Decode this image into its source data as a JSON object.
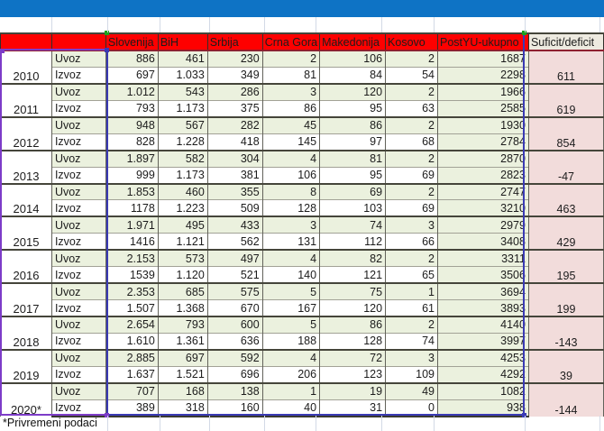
{
  "colors": {
    "titlebar_blue": "#0e73c5",
    "header_red": "#fe0000",
    "uvoz_green": "#ebf1de",
    "suficit_pink": "#f2dcdb",
    "suficit_header_bg": "#edeae0",
    "selection_blue": "#3a3ab4",
    "selection_purple": "#7d3cc8",
    "selection_green": "#1ba11b"
  },
  "table": {
    "col_headers": [
      "",
      "",
      "Slovenija",
      "BiH",
      "Srbija",
      "Crna Gora",
      "Makedonija",
      "Kosovo",
      "PostYU-ukupno",
      "Suficit/deficit"
    ],
    "row_label_uvoz": "Uvoz",
    "row_label_izvoz": "Izvoz",
    "years": [
      {
        "year": "2010",
        "uvoz": [
          "886",
          "461",
          "230",
          "2",
          "106",
          "2",
          "1687"
        ],
        "izvoz": [
          "697",
          "1.033",
          "349",
          "81",
          "84",
          "54",
          "2298"
        ],
        "suficit": "611"
      },
      {
        "year": "2011",
        "uvoz": [
          "1.012",
          "543",
          "286",
          "3",
          "120",
          "2",
          "1966"
        ],
        "izvoz": [
          "793",
          "1.173",
          "375",
          "86",
          "95",
          "63",
          "2585"
        ],
        "suficit": "619"
      },
      {
        "year": "2012",
        "uvoz": [
          "948",
          "567",
          "282",
          "45",
          "86",
          "2",
          "1930"
        ],
        "izvoz": [
          "828",
          "1.228",
          "418",
          "145",
          "97",
          "68",
          "2784"
        ],
        "suficit": "854"
      },
      {
        "year": "2013",
        "uvoz": [
          "1.897",
          "582",
          "304",
          "4",
          "81",
          "2",
          "2870"
        ],
        "izvoz": [
          "999",
          "1.173",
          "381",
          "106",
          "95",
          "69",
          "2823"
        ],
        "suficit": "-47"
      },
      {
        "year": "2014",
        "uvoz": [
          "1.853",
          "460",
          "355",
          "8",
          "69",
          "2",
          "2747"
        ],
        "izvoz": [
          "1178",
          "1.223",
          "509",
          "128",
          "103",
          "69",
          "3210"
        ],
        "suficit": "463"
      },
      {
        "year": "2015",
        "uvoz": [
          "1.971",
          "495",
          "433",
          "3",
          "74",
          "3",
          "2979"
        ],
        "izvoz": [
          "1416",
          "1.121",
          "562",
          "131",
          "112",
          "66",
          "3408"
        ],
        "suficit": "429"
      },
      {
        "year": "2016",
        "uvoz": [
          "2.153",
          "573",
          "497",
          "4",
          "82",
          "2",
          "3311"
        ],
        "izvoz": [
          "1539",
          "1.120",
          "521",
          "140",
          "121",
          "65",
          "3506"
        ],
        "suficit": "195"
      },
      {
        "year": "2017",
        "uvoz": [
          "2.353",
          "685",
          "575",
          "5",
          "75",
          "1",
          "3694"
        ],
        "izvoz": [
          "1.507",
          "1.368",
          "670",
          "167",
          "120",
          "61",
          "3893"
        ],
        "suficit": "199"
      },
      {
        "year": "2018",
        "uvoz": [
          "2.654",
          "793",
          "600",
          "5",
          "86",
          "2",
          "4140"
        ],
        "izvoz": [
          "1.610",
          "1.361",
          "636",
          "188",
          "128",
          "74",
          "3997"
        ],
        "suficit": "-143"
      },
      {
        "year": "2019",
        "uvoz": [
          "2.885",
          "697",
          "592",
          "4",
          "72",
          "3",
          "4253"
        ],
        "izvoz": [
          "1.637",
          "1.521",
          "696",
          "206",
          "123",
          "109",
          "4292"
        ],
        "suficit": "39"
      },
      {
        "year": "2020*",
        "uvoz": [
          "707",
          "168",
          "138",
          "1",
          "19",
          "49",
          "1082"
        ],
        "izvoz": [
          "389",
          "318",
          "160",
          "40",
          "31",
          "0",
          "938"
        ],
        "suficit": "-144"
      }
    ]
  },
  "footer": {
    "note": "*Privremeni podaci"
  }
}
